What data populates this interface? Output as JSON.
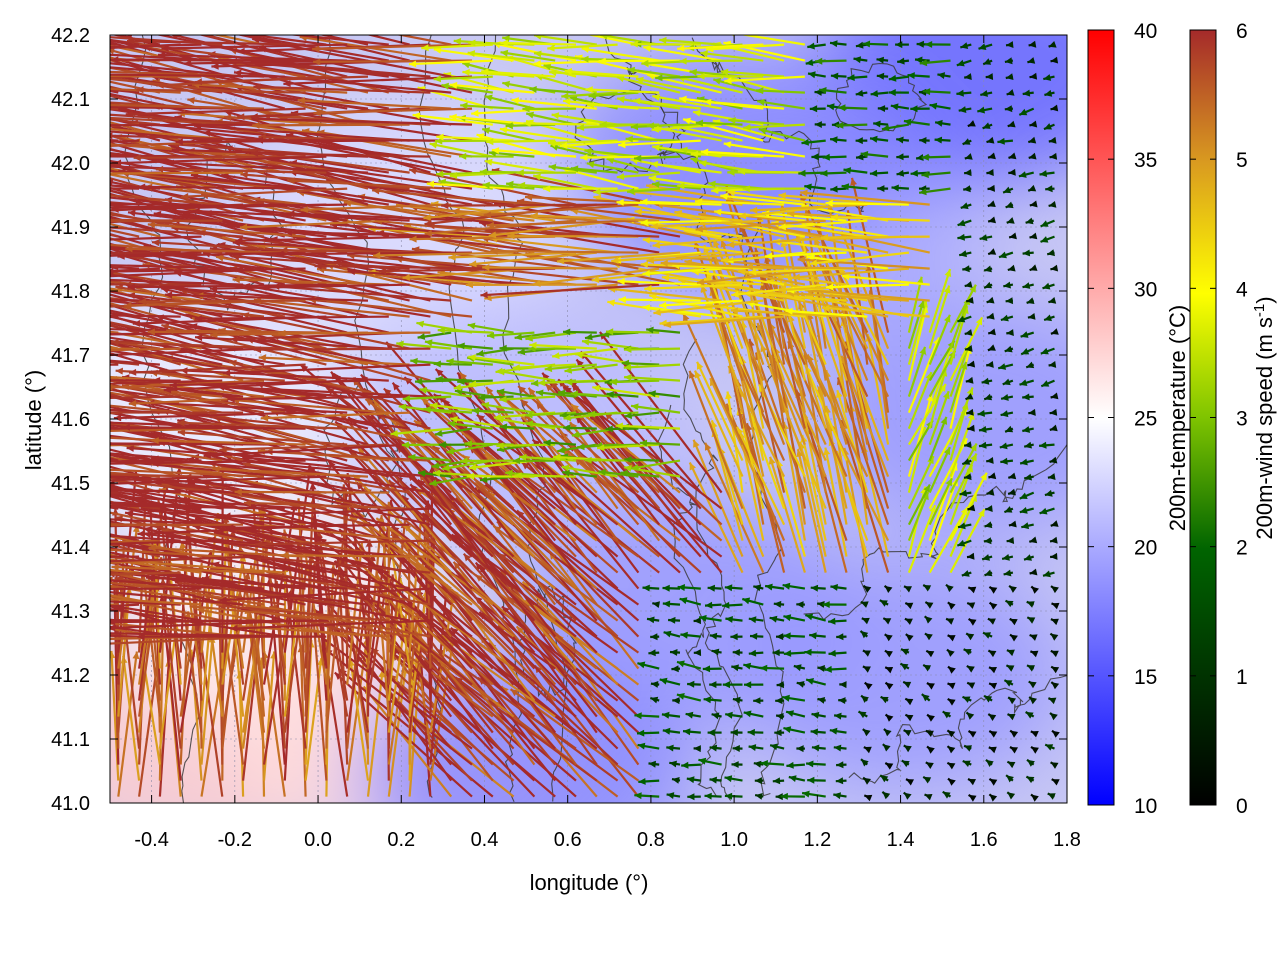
{
  "chart_data": {
    "type": "heatmap",
    "xlabel": "longitude (°)",
    "ylabel": "latitude (°)",
    "xlim": [
      -0.5,
      1.8
    ],
    "ylim": [
      41.0,
      42.2
    ],
    "x_ticks": [
      "-0.4",
      "-0.2",
      "0.0",
      "0.2",
      "0.4",
      "0.6",
      "0.8",
      "1.0",
      "1.2",
      "1.4",
      "1.6",
      "1.8"
    ],
    "x_tick_values": [
      -0.4,
      -0.2,
      0.0,
      0.2,
      0.4,
      0.6,
      0.8,
      1.0,
      1.2,
      1.4,
      1.6,
      1.8
    ],
    "y_ticks": [
      "41.0",
      "41.1",
      "41.2",
      "41.3",
      "41.4",
      "41.5",
      "41.6",
      "41.7",
      "41.8",
      "41.9",
      "42.0",
      "42.1",
      "42.2"
    ],
    "y_tick_values": [
      41.0,
      41.1,
      41.2,
      41.3,
      41.4,
      41.5,
      41.6,
      41.7,
      41.8,
      41.9,
      42.0,
      42.1,
      42.2
    ],
    "grid": true,
    "overlays": [
      "temperature field",
      "wind vectors",
      "terrain contours"
    ],
    "temperature_colorbar": {
      "label": "200m-temperature (°C)",
      "range": [
        10,
        40
      ],
      "ticks": [
        "10",
        "15",
        "20",
        "25",
        "30",
        "35",
        "40"
      ],
      "tick_values": [
        10,
        15,
        20,
        25,
        30,
        35,
        40
      ],
      "colors": [
        "#0000ff",
        "#ffffff",
        "#ff0000"
      ]
    },
    "wind_colorbar": {
      "label": "200m-wind speed (m s-1)",
      "label_main": "200m-wind speed (m s",
      "label_sup": "-1",
      "label_end": ")",
      "range": [
        0,
        6
      ],
      "ticks": [
        "0",
        "1",
        "2",
        "3",
        "4",
        "5",
        "6"
      ],
      "tick_values": [
        0,
        1,
        2,
        3,
        4,
        5,
        6
      ],
      "colors": [
        "#000000",
        "#006400",
        "#7fc400",
        "#ffff00",
        "#d99a20",
        "#a52a2a"
      ]
    },
    "temperature_regions": [
      {
        "lon": -0.3,
        "lat": 41.1,
        "temp": 28
      },
      {
        "lon": -0.1,
        "lat": 41.3,
        "temp": 26
      },
      {
        "lon": 0.2,
        "lat": 41.1,
        "temp": 27
      },
      {
        "lon": -0.3,
        "lat": 41.6,
        "temp": 24
      },
      {
        "lon": 0.2,
        "lat": 41.9,
        "temp": 23
      },
      {
        "lon": 0.5,
        "lat": 41.6,
        "temp": 21
      },
      {
        "lon": 0.9,
        "lat": 41.3,
        "temp": 19
      },
      {
        "lon": 1.4,
        "lat": 41.2,
        "temp": 19
      },
      {
        "lon": 1.2,
        "lat": 41.9,
        "temp": 20
      },
      {
        "lon": 1.6,
        "lat": 42.15,
        "temp": 16
      },
      {
        "lon": 1.0,
        "lat": 42.0,
        "temp": 18
      },
      {
        "lon": 0.5,
        "lat": 41.05,
        "temp": 18
      },
      {
        "lon": 1.6,
        "lat": 41.6,
        "temp": 19
      }
    ],
    "wind_regions": [
      {
        "lon_min": -0.5,
        "lon_max": 0.4,
        "lat_min": 41.25,
        "lat_max": 42.2,
        "u": -1.0,
        "v": 0.12,
        "speed": 6.0
      },
      {
        "lon_min": 0.4,
        "lon_max": 0.9,
        "lat_min": 41.8,
        "lat_max": 41.95,
        "u": -1.0,
        "v": 0.05,
        "speed": 5.5
      },
      {
        "lon_min": 0.9,
        "lon_max": 1.5,
        "lat_min": 41.75,
        "lat_max": 41.95,
        "u": -1.0,
        "v": 0.05,
        "speed": 4.5
      },
      {
        "lon_min": 0.4,
        "lon_max": 1.2,
        "lat_min": 41.95,
        "lat_max": 42.2,
        "u": -1.0,
        "v": 0.1,
        "speed": 3.5
      },
      {
        "lon_min": 0.3,
        "lon_max": 0.9,
        "lat_min": 41.5,
        "lat_max": 41.75,
        "u": -1.0,
        "v": 0.0,
        "speed": 3.0
      },
      {
        "lon_min": 0.3,
        "lon_max": 1.0,
        "lat_min": 41.0,
        "lat_max": 41.5,
        "u": -0.7,
        "v": 0.7,
        "speed": 5.8
      },
      {
        "lon_min": 1.0,
        "lon_max": 1.4,
        "lat_min": 41.35,
        "lat_max": 41.75,
        "u": -0.3,
        "v": 1.0,
        "speed": 5.0
      },
      {
        "lon_min": 1.4,
        "lon_max": 1.65,
        "lat_min": 41.35,
        "lat_max": 41.75,
        "u": 0.4,
        "v": 1.0,
        "speed": 3.5
      },
      {
        "lon_min": -0.5,
        "lon_max": 0.3,
        "lat_min": 41.0,
        "lat_max": 41.25,
        "u": 0.0,
        "v": 1.0,
        "speed": 5.5
      },
      {
        "lon_min": 0.8,
        "lon_max": 1.3,
        "lat_min": 41.0,
        "lat_max": 41.35,
        "u": -1.0,
        "v": 0.1,
        "speed": 1.5
      },
      {
        "lon_min": 1.3,
        "lon_max": 1.8,
        "lat_min": 41.0,
        "lat_max": 41.35,
        "u": -0.5,
        "v": 0.3,
        "speed": 0.6
      },
      {
        "lon_min": 1.55,
        "lon_max": 1.8,
        "lat_min": 41.35,
        "lat_max": 42.2,
        "u": -0.8,
        "v": -0.2,
        "speed": 1.0
      },
      {
        "lon_min": 1.2,
        "lon_max": 1.55,
        "lat_min": 41.95,
        "lat_max": 42.2,
        "u": -1.0,
        "v": 0.0,
        "speed": 1.8
      }
    ]
  }
}
